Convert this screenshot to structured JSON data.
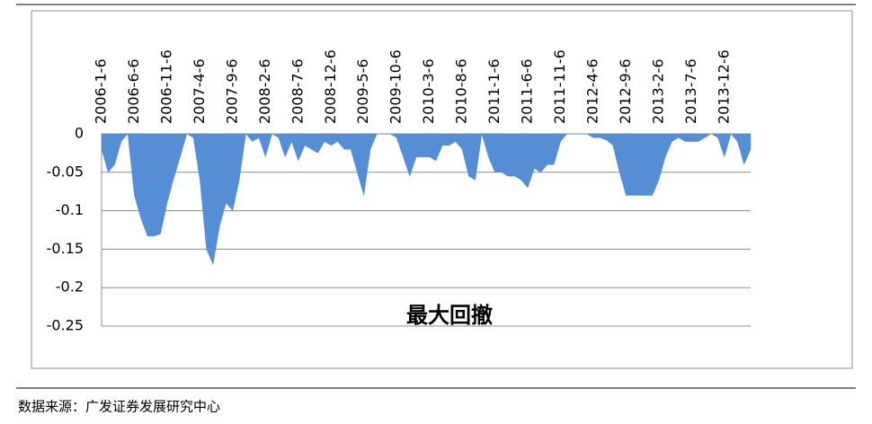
{
  "chart_data": {
    "type": "area",
    "title": "最大回撤",
    "source": "数据来源：广发证券发展研究中心",
    "color": "#558ed5",
    "grid": true,
    "ylim": [
      -0.25,
      0
    ],
    "yticks": [
      0,
      -0.05,
      -0.1,
      -0.15,
      -0.2,
      -0.25
    ],
    "categories": [
      "2006-1-6",
      null,
      null,
      null,
      null,
      "2006-6-6",
      null,
      null,
      null,
      null,
      "2006-11-6",
      null,
      null,
      null,
      null,
      "2007-4-6",
      null,
      null,
      null,
      null,
      "2007-9-6",
      null,
      null,
      null,
      null,
      "2008-2-6",
      null,
      null,
      null,
      null,
      "2008-7-6",
      null,
      null,
      null,
      null,
      "2008-12-6",
      null,
      null,
      null,
      null,
      "2009-5-6",
      null,
      null,
      null,
      null,
      "2009-10-6",
      null,
      null,
      null,
      null,
      "2010-3-6",
      null,
      null,
      null,
      null,
      "2010-8-6",
      null,
      null,
      null,
      null,
      "2011-1-6",
      null,
      null,
      null,
      null,
      "2011-6-6",
      null,
      null,
      null,
      null,
      "2011-11-6",
      null,
      null,
      null,
      null,
      "2012-4-6",
      null,
      null,
      null,
      null,
      "2012-9-6",
      null,
      null,
      null,
      null,
      "2013-2-6",
      null,
      null,
      null,
      null,
      "2013-7-6",
      null,
      null,
      null,
      null,
      "2013-12-6",
      null,
      null,
      null,
      null
    ],
    "values": [
      -0.02,
      -0.05,
      -0.04,
      -0.01,
      0,
      -0.08,
      -0.11,
      -0.133,
      -0.133,
      -0.13,
      -0.09,
      -0.058,
      -0.03,
      0,
      -0.005,
      -0.06,
      -0.15,
      -0.17,
      -0.12,
      -0.09,
      -0.1,
      -0.06,
      0,
      -0.01,
      -0.005,
      -0.03,
      0,
      -0.005,
      -0.03,
      -0.01,
      -0.035,
      -0.015,
      -0.02,
      -0.025,
      -0.01,
      -0.015,
      -0.01,
      -0.02,
      -0.02,
      -0.05,
      -0.08,
      -0.02,
      0,
      0,
      0,
      -0.005,
      -0.03,
      -0.055,
      -0.03,
      -0.03,
      -0.03,
      -0.035,
      -0.015,
      -0.015,
      -0.01,
      -0.02,
      -0.055,
      -0.06,
      0,
      -0.03,
      -0.05,
      -0.05,
      -0.055,
      -0.055,
      -0.06,
      -0.07,
      -0.045,
      -0.05,
      -0.04,
      -0.04,
      -0.01,
      0,
      0,
      0,
      0,
      -0.005,
      -0.005,
      -0.008,
      -0.015,
      -0.05,
      -0.08,
      -0.08,
      -0.08,
      -0.08,
      -0.08,
      -0.06,
      -0.03,
      -0.01,
      -0.005,
      -0.01,
      -0.01,
      -0.01,
      -0.005,
      0,
      -0.005,
      -0.03,
      0,
      -0.01,
      -0.04,
      -0.02
    ]
  }
}
